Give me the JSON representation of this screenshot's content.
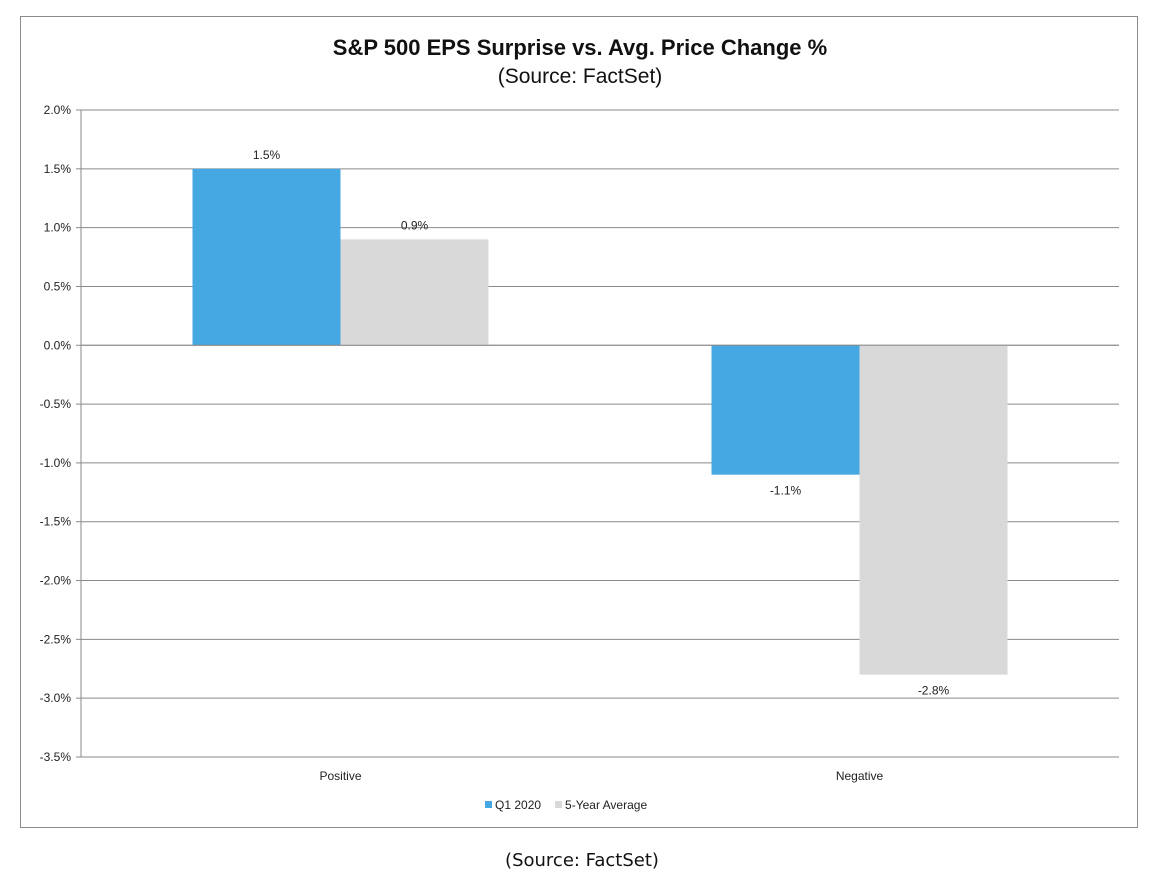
{
  "chart_data": {
    "type": "bar",
    "title": "S&P 500 EPS Surprise vs. Avg. Price Change %",
    "subtitle": "(Source: FactSet)",
    "categories": [
      "Positive",
      "Negative"
    ],
    "series": [
      {
        "name": "Q1 2020",
        "values": [
          1.5,
          -1.1
        ],
        "labels": [
          "1.5%",
          "-1.1%"
        ],
        "color": "#45a8e2"
      },
      {
        "name": "5-Year Average",
        "values": [
          0.9,
          -2.8
        ],
        "labels": [
          "0.9%",
          "-2.8%"
        ],
        "color": "#d9d9d9"
      }
    ],
    "ylim": [
      -3.5,
      2.0
    ],
    "yticks": [
      {
        "value": 2.0,
        "label": "2.0%"
      },
      {
        "value": 1.5,
        "label": "1.5%"
      },
      {
        "value": 1.0,
        "label": "1.0%"
      },
      {
        "value": 0.5,
        "label": "0.5%"
      },
      {
        "value": 0.0,
        "label": "0.0%"
      },
      {
        "value": -0.5,
        "label": "-0.5%"
      },
      {
        "value": -1.0,
        "label": "-1.0%"
      },
      {
        "value": -1.5,
        "label": "-1.5%"
      },
      {
        "value": -2.0,
        "label": "-2.0%"
      },
      {
        "value": -2.5,
        "label": "-2.5%"
      },
      {
        "value": -3.0,
        "label": "-3.0%"
      },
      {
        "value": -3.5,
        "label": "-3.5%"
      }
    ],
    "grid": true,
    "legend_position": "bottom"
  },
  "caption": "(Source: FactSet)"
}
